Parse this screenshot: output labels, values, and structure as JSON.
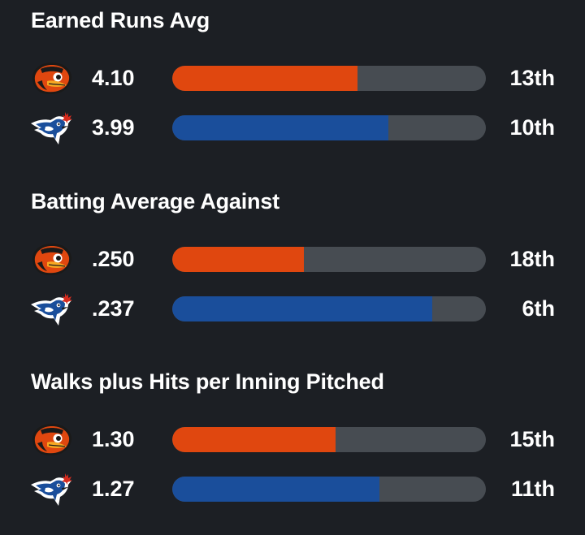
{
  "colors": {
    "background": "#1c1f24",
    "track": "#474c52",
    "orioles": "#e0470f",
    "bluejays": "#1a4e9b"
  },
  "teams": {
    "orioles": {
      "icon": "orioles-bird-logo-icon"
    },
    "bluejays": {
      "icon": "bluejays-logo-icon"
    }
  },
  "stats": [
    {
      "title": "Earned Runs Avg",
      "rows": [
        {
          "team": "orioles",
          "value": "4.10",
          "rank": "13th",
          "fill_fraction": 0.59
        },
        {
          "team": "bluejays",
          "value": "3.99",
          "rank": "10th",
          "fill_fraction": 0.69
        }
      ]
    },
    {
      "title": "Batting Average Against",
      "rows": [
        {
          "team": "orioles",
          "value": ".250",
          "rank": "18th",
          "fill_fraction": 0.42
        },
        {
          "team": "bluejays",
          "value": ".237",
          "rank": "6th",
          "fill_fraction": 0.83
        }
      ]
    },
    {
      "title": "Walks plus Hits per Inning Pitched",
      "rows": [
        {
          "team": "orioles",
          "value": "1.30",
          "rank": "15th",
          "fill_fraction": 0.52
        },
        {
          "team": "bluejays",
          "value": "1.27",
          "rank": "11th",
          "fill_fraction": 0.66
        }
      ]
    }
  ]
}
